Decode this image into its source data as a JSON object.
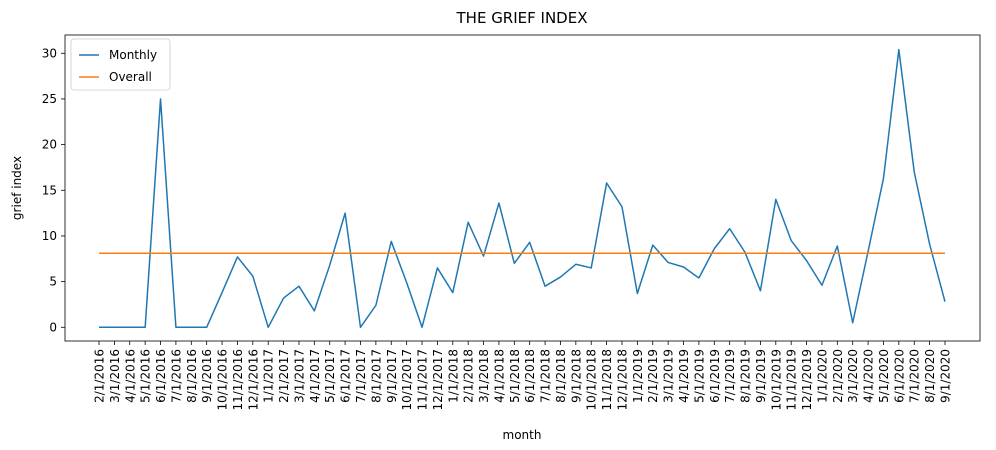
{
  "chart_data": {
    "type": "line",
    "title": "THE GRIEF INDEX",
    "xlabel": "month",
    "ylabel": "grief index",
    "ylim": [
      -1.5,
      32
    ],
    "yticks": [
      0,
      5,
      10,
      15,
      20,
      25,
      30
    ],
    "grid": false,
    "legend_position": "top-left",
    "categories": [
      "2/1/2016",
      "3/1/2016",
      "4/1/2016",
      "5/1/2016",
      "6/1/2016",
      "7/1/2016",
      "8/1/2016",
      "9/1/2016",
      "10/1/2016",
      "11/1/2016",
      "12/1/2016",
      "1/1/2017",
      "2/1/2017",
      "3/1/2017",
      "4/1/2017",
      "5/1/2017",
      "6/1/2017",
      "7/1/2017",
      "8/1/2017",
      "9/1/2017",
      "10/1/2017",
      "11/1/2017",
      "12/1/2017",
      "1/1/2018",
      "2/1/2018",
      "3/1/2018",
      "4/1/2018",
      "5/1/2018",
      "6/1/2018",
      "7/1/2018",
      "8/1/2018",
      "9/1/2018",
      "10/1/2018",
      "11/1/2018",
      "12/1/2018",
      "1/1/2019",
      "2/1/2019",
      "3/1/2019",
      "4/1/2019",
      "5/1/2019",
      "6/1/2019",
      "7/1/2019",
      "8/1/2019",
      "9/1/2019",
      "10/1/2019",
      "11/1/2019",
      "12/1/2019",
      "1/1/2020",
      "2/1/2020",
      "3/1/2020",
      "4/1/2020",
      "5/1/2020",
      "6/1/2020",
      "7/1/2020",
      "8/1/2020",
      "9/1/2020"
    ],
    "series": [
      {
        "name": "Monthly",
        "color": "#1f77b4",
        "values": [
          0,
          0,
          0,
          0,
          25,
          0,
          0,
          0,
          3.8,
          7.7,
          5.6,
          0,
          3.2,
          4.5,
          1.8,
          6.8,
          12.5,
          0,
          2.4,
          9.4,
          4.9,
          0,
          6.5,
          3.8,
          11.5,
          7.8,
          13.6,
          7.0,
          9.3,
          4.5,
          5.5,
          6.9,
          6.5,
          15.8,
          13.2,
          3.7,
          9.0,
          7.1,
          6.6,
          5.4,
          8.6,
          10.8,
          8.2,
          4.0,
          14.0,
          9.5,
          7.3,
          4.6,
          8.9,
          0.5,
          8.3,
          16.3,
          30.4,
          17.0,
          9.1,
          2.8
        ]
      },
      {
        "name": "Overall",
        "color": "#ff7f0e",
        "values": [
          8.1,
          8.1,
          8.1,
          8.1,
          8.1,
          8.1,
          8.1,
          8.1,
          8.1,
          8.1,
          8.1,
          8.1,
          8.1,
          8.1,
          8.1,
          8.1,
          8.1,
          8.1,
          8.1,
          8.1,
          8.1,
          8.1,
          8.1,
          8.1,
          8.1,
          8.1,
          8.1,
          8.1,
          8.1,
          8.1,
          8.1,
          8.1,
          8.1,
          8.1,
          8.1,
          8.1,
          8.1,
          8.1,
          8.1,
          8.1,
          8.1,
          8.1,
          8.1,
          8.1,
          8.1,
          8.1,
          8.1,
          8.1,
          8.1,
          8.1,
          8.1,
          8.1,
          8.1,
          8.1,
          8.1,
          8.1
        ]
      }
    ]
  }
}
